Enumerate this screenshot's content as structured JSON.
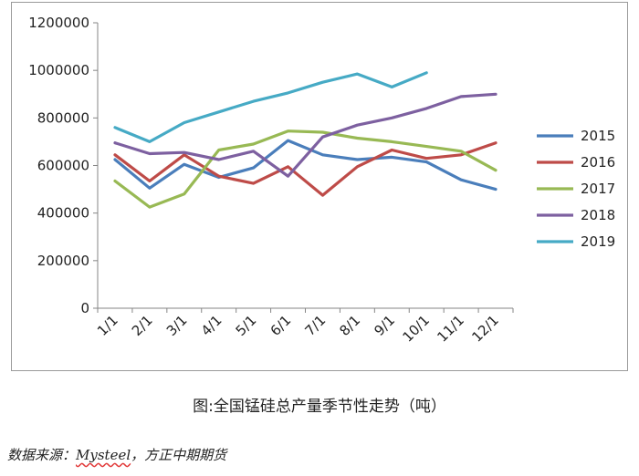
{
  "chart_data": {
    "type": "line",
    "title": "",
    "xlabel": "",
    "ylabel": "",
    "categories": [
      "1/1",
      "2/1",
      "3/1",
      "4/1",
      "5/1",
      "6/1",
      "7/1",
      "8/1",
      "9/1",
      "10/1",
      "11/1",
      "12/1"
    ],
    "ylim": [
      0,
      1200000
    ],
    "yticks": [
      0,
      200000,
      400000,
      600000,
      800000,
      1000000,
      1200000
    ],
    "grid": false,
    "legend_position": "right",
    "series": [
      {
        "name": "2015",
        "color": "#4a7ebb",
        "values": [
          625000,
          505000,
          605000,
          550000,
          590000,
          705000,
          645000,
          625000,
          635000,
          615000,
          540000,
          500000
        ]
      },
      {
        "name": "2016",
        "color": "#be4b48",
        "values": [
          645000,
          535000,
          645000,
          555000,
          525000,
          595000,
          475000,
          595000,
          665000,
          630000,
          645000,
          695000
        ]
      },
      {
        "name": "2017",
        "color": "#98b954",
        "values": [
          535000,
          425000,
          480000,
          665000,
          690000,
          745000,
          740000,
          715000,
          700000,
          680000,
          660000,
          580000
        ]
      },
      {
        "name": "2018",
        "color": "#7d60a0",
        "values": [
          695000,
          650000,
          655000,
          625000,
          660000,
          555000,
          720000,
          770000,
          800000,
          840000,
          890000,
          900000
        ]
      },
      {
        "name": "2019",
        "color": "#46aac5",
        "values": [
          760000,
          700000,
          780000,
          825000,
          870000,
          905000,
          950000,
          985000,
          930000,
          990000,
          null,
          null
        ]
      }
    ]
  },
  "caption": "图:全国锰硅总产量季节性走势（吨）",
  "source": {
    "prefix": "数据来源：",
    "brand": "Mysteel",
    "suffix": "，方正中期期货"
  }
}
